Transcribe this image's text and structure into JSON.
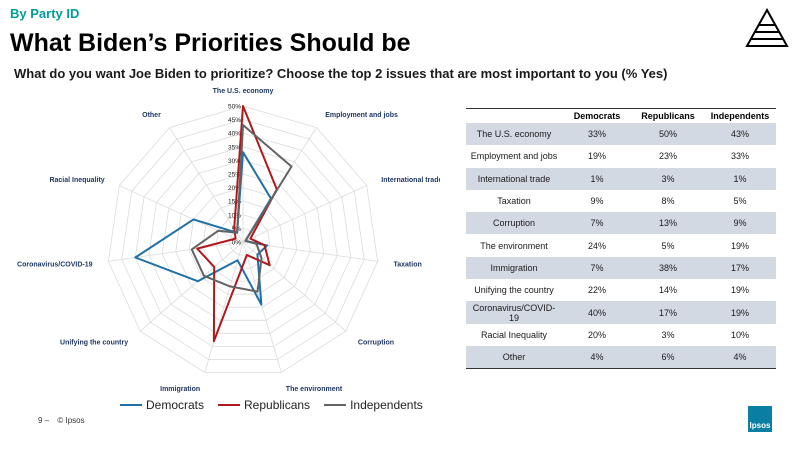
{
  "header": {
    "section_label": "By Party ID",
    "title": "What Biden’s Priorities Should be",
    "subtitle": "What do you want Joe Biden to prioritize? Choose the top 2 issues that are most important to you (% Yes)"
  },
  "footer": {
    "page": "9 –",
    "copyright": "© Ipsos",
    "logo_text": "Ipsos"
  },
  "colors": {
    "accent": "#009d9a",
    "democrats": "#1f6fa8",
    "republicans": "#b0181b",
    "independents": "#636363",
    "table_shade": "#d3d9e3",
    "logo": "#0a7fa3"
  },
  "icons": {
    "top_right": "pyramid-icon"
  },
  "chart_data": {
    "type": "radar",
    "categories": [
      "The U.S. economy",
      "Employment and jobs",
      "International trade",
      "Taxation",
      "Corruption",
      "The environment",
      "Immigration",
      "Unifying the country",
      "Coronavirus/COVID-19",
      "Racial Inequality",
      "Other"
    ],
    "series": [
      {
        "name": "Democrats",
        "values": [
          33,
          19,
          1,
          9,
          7,
          24,
          7,
          22,
          40,
          20,
          4
        ]
      },
      {
        "name": "Republicans",
        "values": [
          50,
          23,
          3,
          8,
          13,
          5,
          38,
          14,
          17,
          3,
          6
        ]
      },
      {
        "name": "Independents",
        "values": [
          43,
          33,
          1,
          5,
          9,
          19,
          17,
          19,
          19,
          10,
          4
        ]
      }
    ],
    "ticks": [
      "0%",
      "5%",
      "10%",
      "15%",
      "20%",
      "25%",
      "30%",
      "35%",
      "40%",
      "45%",
      "50%"
    ],
    "rlim": [
      0,
      50
    ],
    "legend_position": "bottom",
    "grid": true
  },
  "table": {
    "headers": [
      "",
      "Democrats",
      "Republicans",
      "Independents"
    ],
    "rows": [
      [
        "The U.S. economy",
        "33%",
        "50%",
        "43%"
      ],
      [
        "Employment and jobs",
        "19%",
        "23%",
        "33%"
      ],
      [
        "International trade",
        "1%",
        "3%",
        "1%"
      ],
      [
        "Taxation",
        "9%",
        "8%",
        "5%"
      ],
      [
        "Corruption",
        "7%",
        "13%",
        "9%"
      ],
      [
        "The environment",
        "24%",
        "5%",
        "19%"
      ],
      [
        "Immigration",
        "7%",
        "38%",
        "17%"
      ],
      [
        "Unifying the country",
        "22%",
        "14%",
        "19%"
      ],
      [
        "Coronavirus/COVID-19",
        "40%",
        "17%",
        "19%"
      ],
      [
        "Racial Inequality",
        "20%",
        "3%",
        "10%"
      ],
      [
        "Other",
        "4%",
        "6%",
        "4%"
      ]
    ]
  }
}
